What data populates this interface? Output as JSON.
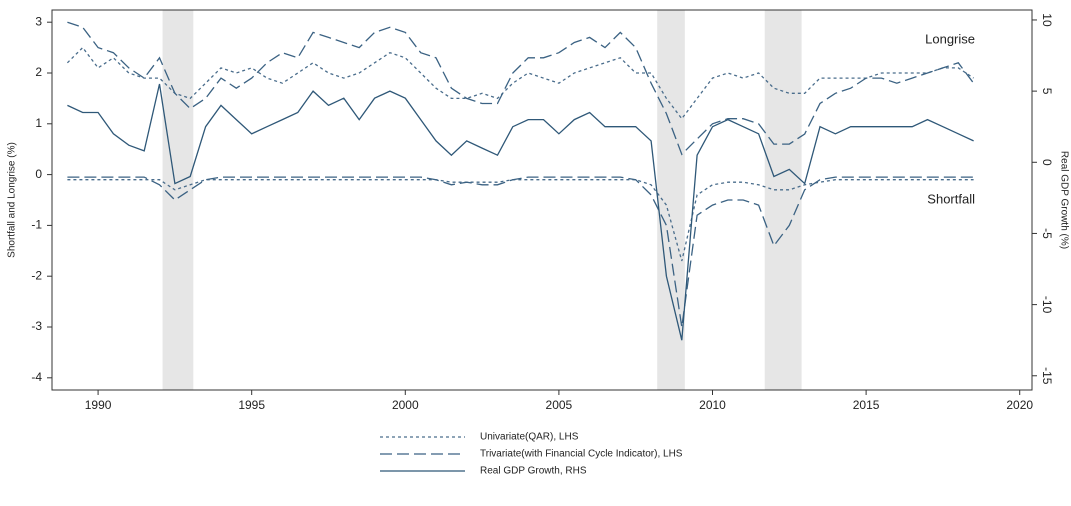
{
  "chart_data": {
    "type": "line",
    "y_label": "Shortfall and Longrise (%)",
    "y2_label": "Real GDP Growth (%)",
    "annotations": [
      "Longrise",
      "Shortfall"
    ],
    "xlim": [
      1988.5,
      2020.4
    ],
    "xticks": [
      1990,
      1995,
      2000,
      2005,
      2010,
      2015,
      2020
    ],
    "ylim": [
      -4.24,
      3.24
    ],
    "yticks": [
      -4,
      -3,
      -2,
      -1,
      0,
      1,
      2,
      3
    ],
    "y2lim": [
      -16,
      10.7
    ],
    "y2ticks": [
      -15,
      -10,
      -5,
      0,
      5,
      10
    ],
    "shaded_periods": [
      [
        1992.1,
        1993.1
      ],
      [
        2008.2,
        2009.1
      ],
      [
        2011.7,
        2012.9
      ]
    ],
    "x": [
      1989,
      1989.5,
      1990,
      1990.5,
      1991,
      1991.5,
      1992,
      1992.5,
      1993,
      1993.5,
      1994,
      1994.5,
      1995,
      1995.5,
      1996,
      1996.5,
      1997,
      1997.5,
      1998,
      1998.5,
      1999,
      1999.5,
      2000,
      2000.5,
      2001,
      2001.5,
      2002,
      2002.5,
      2003,
      2003.5,
      2004,
      2004.5,
      2005,
      2005.5,
      2006,
      2006.5,
      2007,
      2007.5,
      2008,
      2008.5,
      2009,
      2009.5,
      2010,
      2010.5,
      2011,
      2011.5,
      2012,
      2012.5,
      2013,
      2013.5,
      2014,
      2014.5,
      2015,
      2015.5,
      2016,
      2016.5,
      2017,
      2017.5,
      2018,
      2018.5
    ],
    "series": [
      {
        "name": "Univariate(QAR), LHS",
        "color": "#4a6d8c",
        "dash": "short",
        "axis": "y",
        "values": [
          2.2,
          2.5,
          2.1,
          2.3,
          2.0,
          1.9,
          1.9,
          1.6,
          1.5,
          1.8,
          2.1,
          2.0,
          2.1,
          1.9,
          1.8,
          2.0,
          2.2,
          2.0,
          1.9,
          2.0,
          2.2,
          2.4,
          2.3,
          2.0,
          1.7,
          1.5,
          1.5,
          1.6,
          1.5,
          1.8,
          2.0,
          1.9,
          1.8,
          2.0,
          2.1,
          2.2,
          2.3,
          2.0,
          2.0,
          1.5,
          1.1,
          1.5,
          1.9,
          2.0,
          1.9,
          2.0,
          1.7,
          1.6,
          1.6,
          1.9,
          1.9,
          1.9,
          1.9,
          2.0,
          2.0,
          2.0,
          2.0,
          2.1,
          2.1,
          1.9
        ]
      },
      {
        "name": "Univariate(QAR), LHS",
        "color": "#4a6d8c",
        "dash": "short",
        "axis": "y",
        "values": [
          -0.1,
          -0.1,
          -0.1,
          -0.1,
          -0.1,
          -0.1,
          -0.1,
          -0.3,
          -0.2,
          -0.1,
          -0.1,
          -0.1,
          -0.1,
          -0.1,
          -0.1,
          -0.1,
          -0.1,
          -0.1,
          -0.1,
          -0.1,
          -0.1,
          -0.1,
          -0.1,
          -0.1,
          -0.1,
          -0.15,
          -0.15,
          -0.15,
          -0.15,
          -0.1,
          -0.1,
          -0.1,
          -0.1,
          -0.1,
          -0.1,
          -0.1,
          -0.1,
          -0.1,
          -0.2,
          -0.6,
          -1.7,
          -0.4,
          -0.2,
          -0.15,
          -0.15,
          -0.2,
          -0.3,
          -0.3,
          -0.2,
          -0.15,
          -0.1,
          -0.1,
          -0.1,
          -0.1,
          -0.1,
          -0.1,
          -0.1,
          -0.1,
          -0.1,
          -0.1
        ]
      },
      {
        "name": "Trivariate(with Financial Cycle Indicator), LHS",
        "color": "#3b6283",
        "dash": "long",
        "axis": "y",
        "values": [
          3.0,
          2.9,
          2.5,
          2.4,
          2.1,
          1.9,
          2.3,
          1.6,
          1.3,
          1.5,
          1.9,
          1.7,
          1.9,
          2.2,
          2.4,
          2.3,
          2.8,
          2.7,
          2.6,
          2.5,
          2.8,
          2.9,
          2.8,
          2.4,
          2.3,
          1.7,
          1.5,
          1.4,
          1.4,
          2.0,
          2.3,
          2.3,
          2.4,
          2.6,
          2.7,
          2.5,
          2.8,
          2.5,
          1.8,
          1.2,
          0.4,
          0.7,
          1.0,
          1.1,
          1.1,
          1.0,
          0.6,
          0.6,
          0.8,
          1.4,
          1.6,
          1.7,
          1.9,
          1.9,
          1.8,
          1.9,
          2.0,
          2.1,
          2.2,
          1.8
        ]
      },
      {
        "name": "Trivariate(with Financial Cycle Indicator), LHS",
        "color": "#3b6283",
        "dash": "long",
        "axis": "y",
        "values": [
          -0.05,
          -0.05,
          -0.05,
          -0.05,
          -0.05,
          -0.05,
          -0.2,
          -0.5,
          -0.3,
          -0.1,
          -0.05,
          -0.05,
          -0.05,
          -0.05,
          -0.05,
          -0.05,
          -0.05,
          -0.05,
          -0.05,
          -0.05,
          -0.05,
          -0.05,
          -0.05,
          -0.05,
          -0.1,
          -0.2,
          -0.15,
          -0.2,
          -0.2,
          -0.1,
          -0.05,
          -0.05,
          -0.05,
          -0.05,
          -0.05,
          -0.05,
          -0.05,
          -0.1,
          -0.4,
          -1.0,
          -3.0,
          -0.8,
          -0.6,
          -0.5,
          -0.5,
          -0.6,
          -1.4,
          -1.0,
          -0.3,
          -0.1,
          -0.05,
          -0.05,
          -0.05,
          -0.05,
          -0.05,
          -0.05,
          -0.05,
          -0.05,
          -0.05,
          -0.05
        ]
      },
      {
        "name": "Real GDP Growth, RHS",
        "color": "#2f5878",
        "dash": "solid",
        "axis": "y2",
        "values": [
          4.0,
          3.5,
          3.5,
          2.0,
          1.2,
          0.8,
          5.5,
          -1.5,
          -1.0,
          2.5,
          4.0,
          3.0,
          2.0,
          2.5,
          3.0,
          3.5,
          5.0,
          4.0,
          4.5,
          3.0,
          4.5,
          5.0,
          4.5,
          3.0,
          1.5,
          0.5,
          1.5,
          1.0,
          0.5,
          2.5,
          3.0,
          3.0,
          2.0,
          3.0,
          3.5,
          2.5,
          2.5,
          2.5,
          1.5,
          -8.0,
          -12.5,
          0.5,
          2.5,
          3.0,
          2.5,
          2.0,
          -1.0,
          -0.5,
          -1.5,
          2.5,
          2.0,
          2.5,
          2.5,
          2.5,
          2.5,
          2.5,
          3.0,
          2.5,
          2.0,
          1.5
        ]
      }
    ]
  }
}
